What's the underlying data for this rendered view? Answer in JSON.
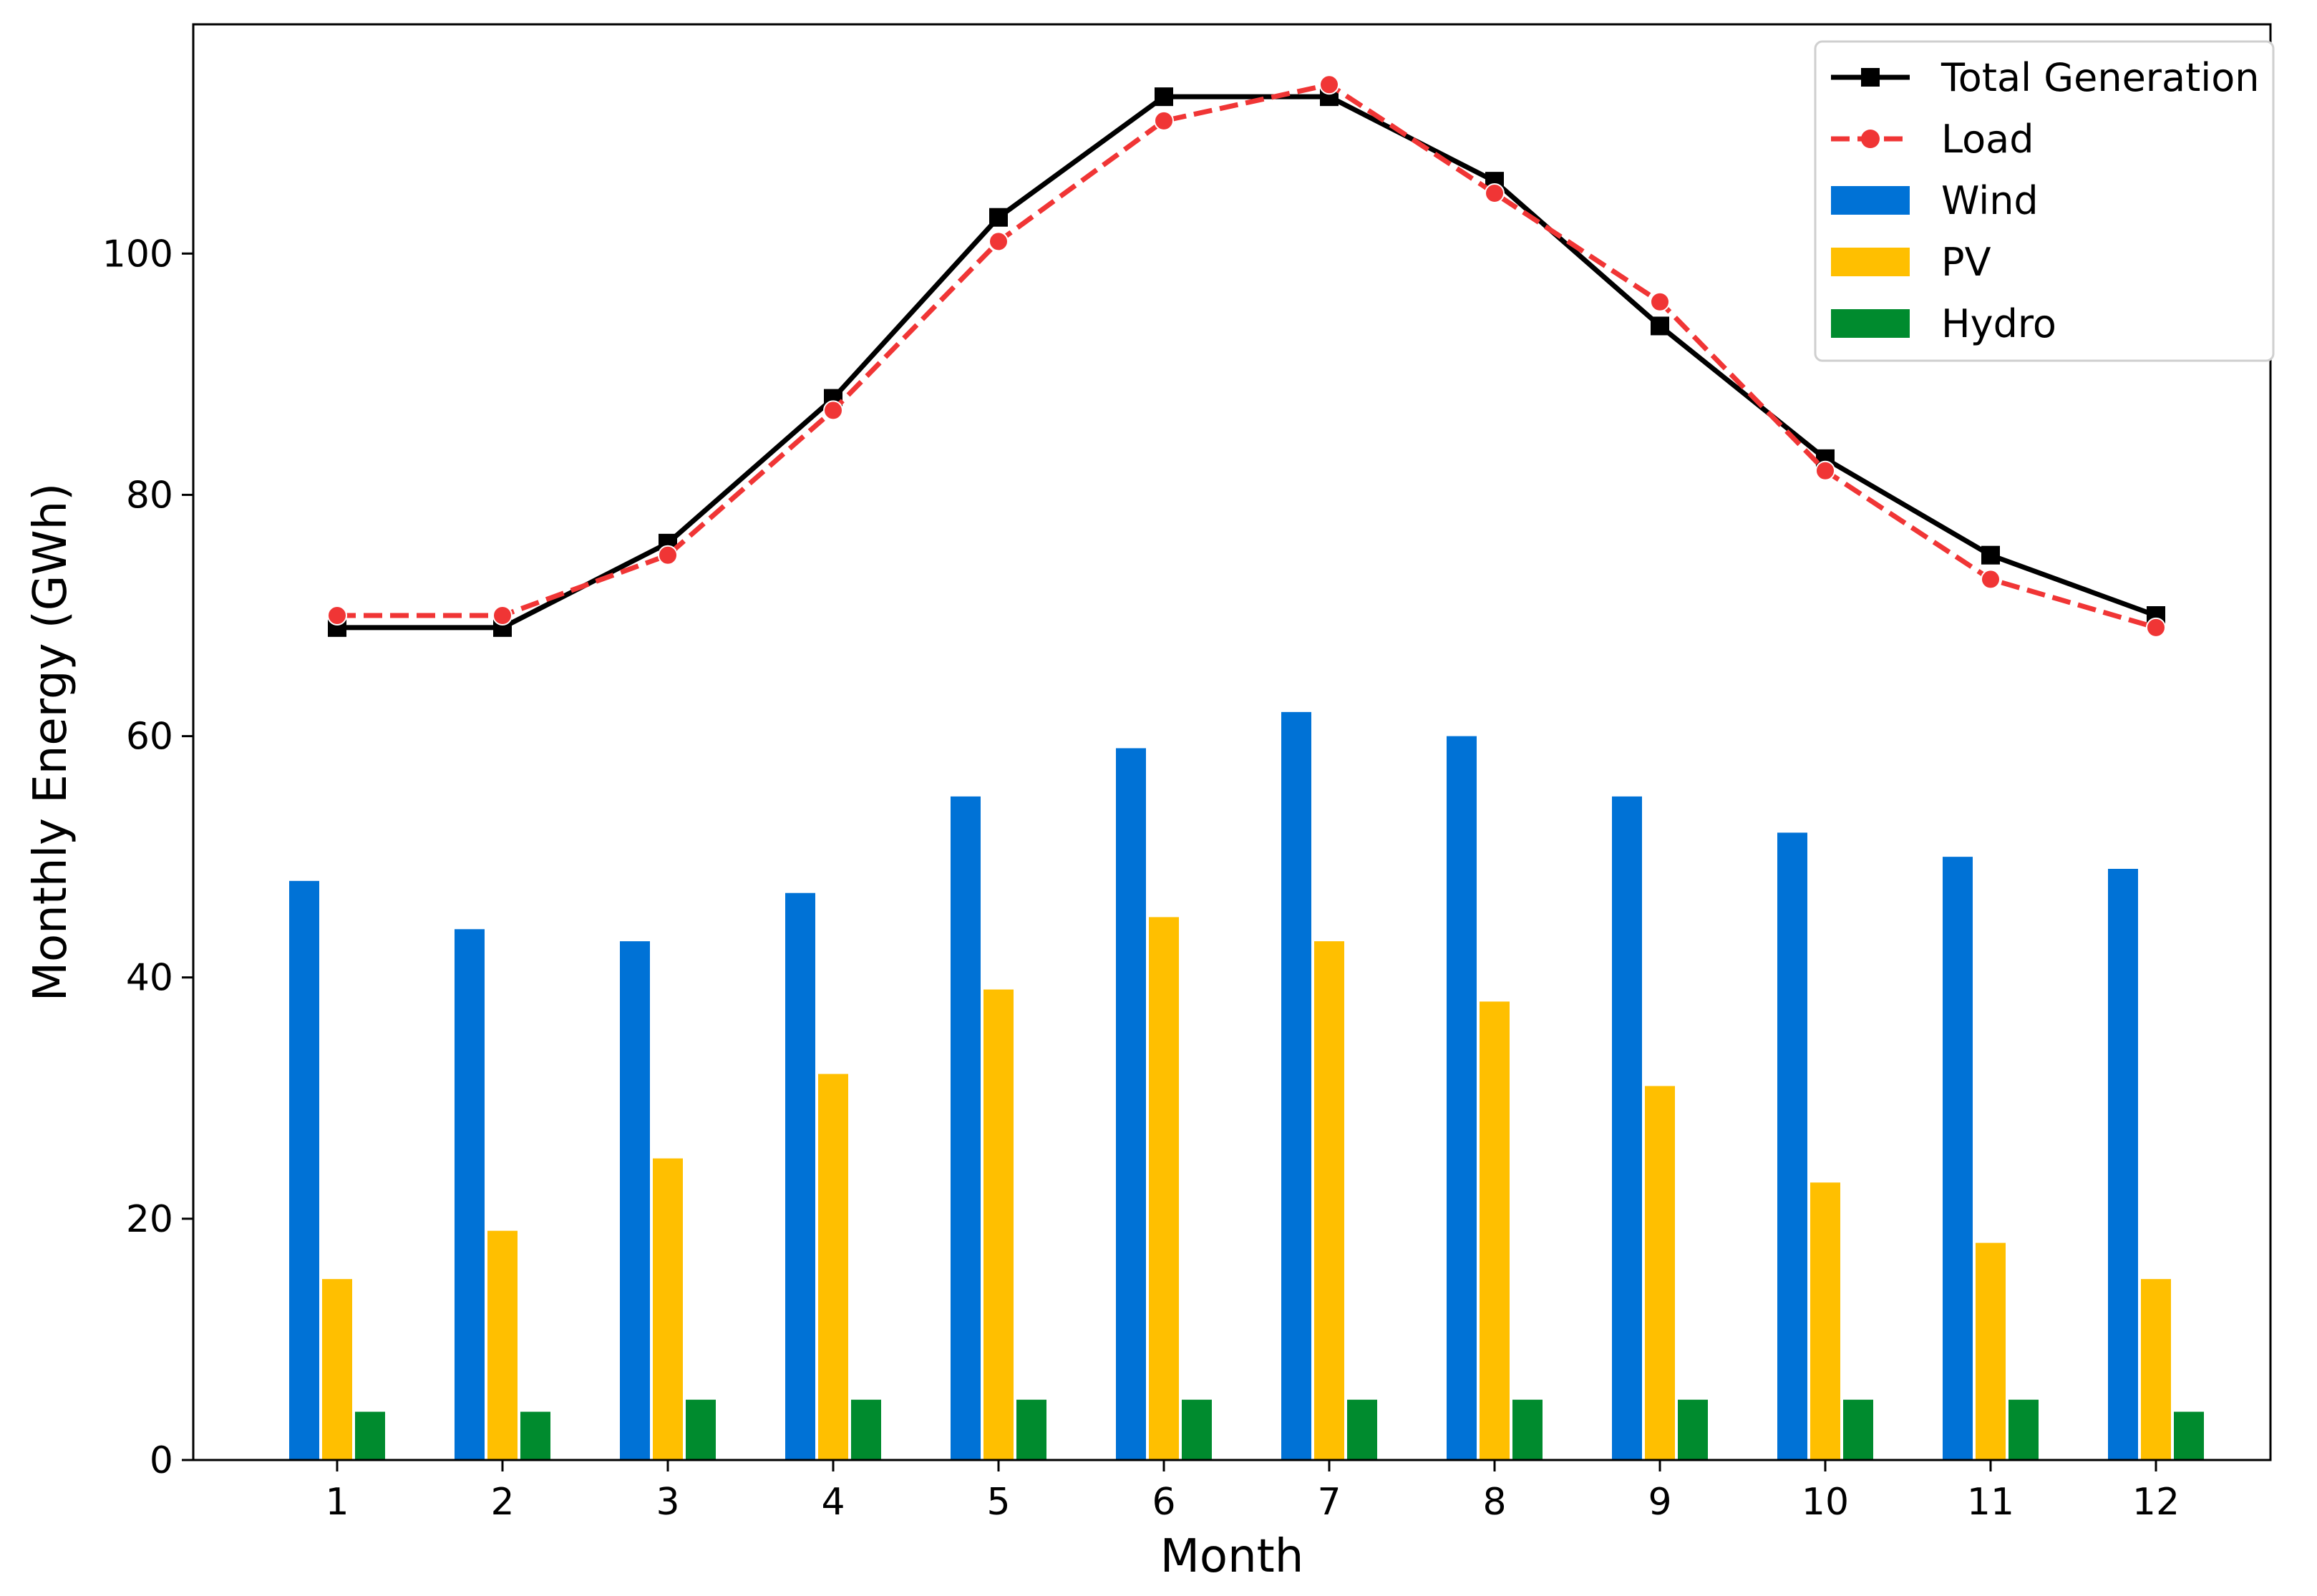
{
  "chart_data": {
    "type": "bar",
    "title": "",
    "xlabel": "Month",
    "ylabel": "Monthly Energy (GWh)",
    "ylim": [
      0,
      119
    ],
    "yticks": [
      0,
      20,
      40,
      60,
      80,
      100
    ],
    "categories": [
      "1",
      "2",
      "3",
      "4",
      "5",
      "6",
      "7",
      "8",
      "9",
      "10",
      "11",
      "12"
    ],
    "grid": false,
    "legend_position": "top-right",
    "series": [
      {
        "name": "Wind",
        "type": "bar",
        "color": "#0072d6",
        "values": [
          48,
          44,
          43,
          47,
          55,
          59,
          62,
          60,
          55,
          52,
          50,
          49
        ]
      },
      {
        "name": "PV",
        "type": "bar",
        "color": "#ffbf00",
        "values": [
          15,
          19,
          25,
          32,
          39,
          45,
          43,
          38,
          31,
          23,
          18,
          15
        ]
      },
      {
        "name": "Hydro",
        "type": "bar",
        "color": "#008b2e",
        "values": [
          4,
          4,
          5,
          5,
          5,
          5,
          5,
          5,
          5,
          5,
          5,
          4
        ]
      },
      {
        "name": "Total Generation",
        "type": "line",
        "color": "#000000",
        "marker": "square",
        "dash": "solid",
        "values": [
          69,
          69,
          76,
          88,
          103,
          113,
          113,
          106,
          94,
          83,
          75,
          70
        ]
      },
      {
        "name": "Load",
        "type": "line",
        "color": "#f03535",
        "marker": "circle",
        "dash": "dashed",
        "values": [
          70,
          70,
          75,
          87,
          101,
          111,
          114,
          105,
          96,
          82,
          73,
          69
        ]
      }
    ],
    "legend_order": [
      "Total Generation",
      "Load",
      "Wind",
      "PV",
      "Hydro"
    ]
  }
}
